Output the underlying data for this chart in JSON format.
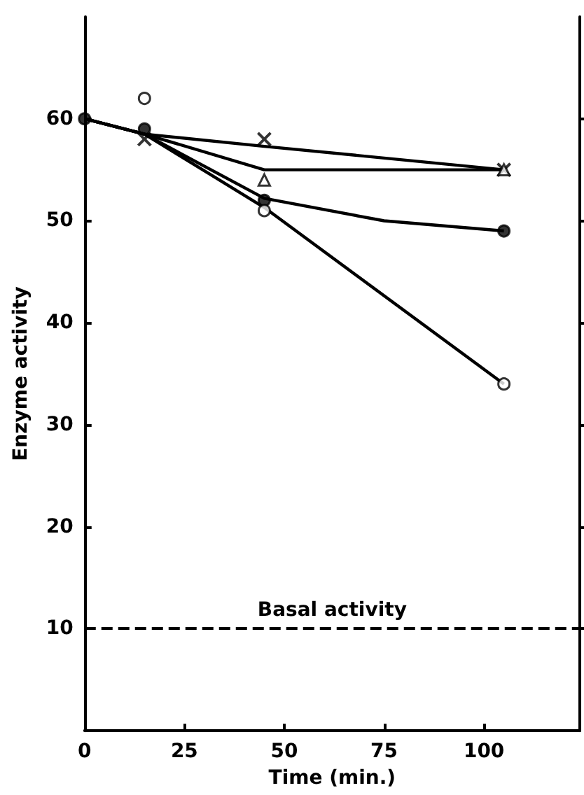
{
  "chart_data": {
    "type": "line",
    "xlabel": "Time (min.)",
    "ylabel": "Enzyme activity",
    "xlim": [
      0,
      124
    ],
    "xticks": [
      0,
      25,
      50,
      75,
      100
    ],
    "ylim": [
      0,
      70
    ],
    "yticks": [
      10,
      20,
      30,
      40,
      50,
      60
    ],
    "line_style": "solid",
    "series": [
      {
        "color": "#000000",
        "marker": "none",
        "x": [
          0,
          15,
          45,
          105
        ],
        "values": [
          60,
          58.5,
          57.3,
          55
        ]
      },
      {
        "color": "#000000",
        "marker": "none",
        "x": [
          0,
          15,
          45,
          105
        ],
        "values": [
          60,
          58.5,
          55,
          55
        ]
      },
      {
        "color": "#000000",
        "marker": "none",
        "x": [
          0,
          15,
          45,
          75,
          105
        ],
        "values": [
          60,
          58.5,
          52.2,
          50,
          49
        ]
      },
      {
        "color": "#000000",
        "marker": "none",
        "x": [
          0,
          15,
          45,
          105
        ],
        "values": [
          60,
          58.5,
          51.3,
          34
        ]
      },
      {
        "type": "scatter",
        "color": "#000000",
        "marker": "cross",
        "x": [
          15,
          45,
          105
        ],
        "values": [
          58,
          58,
          55
        ]
      },
      {
        "type": "scatter",
        "color": "#ffffff",
        "marker": "triangle",
        "x": [
          45,
          105
        ],
        "values": [
          54,
          55
        ]
      },
      {
        "type": "scatter",
        "color": "#000000",
        "marker": "circle",
        "x": [
          0,
          15,
          45,
          105
        ],
        "values": [
          60,
          59,
          52,
          49
        ]
      },
      {
        "type": "scatter",
        "color": "#ffffff",
        "marker": "circle",
        "x": [
          15,
          45,
          105
        ],
        "values": [
          62,
          51,
          34
        ]
      }
    ],
    "ref_lines": [
      {
        "axis": "y",
        "value": 10,
        "label": "Basal activity",
        "color": "#000000",
        "line_style": "dashed"
      }
    ]
  }
}
